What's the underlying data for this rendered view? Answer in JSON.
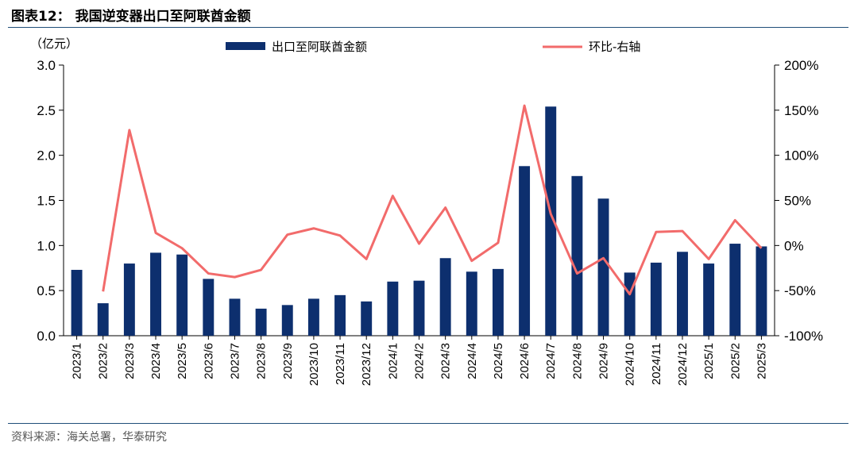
{
  "figure": {
    "title": "图表12：  我国逆变器出口至阿联酋金额",
    "source": "资料来源：海关总署，华泰研究"
  },
  "chart_data": {
    "type": "bar",
    "categories": [
      "2023/1",
      "2023/2",
      "2023/3",
      "2023/4",
      "2023/5",
      "2023/6",
      "2023/7",
      "2023/8",
      "2023/9",
      "2023/10",
      "2023/11",
      "2023/12",
      "2024/1",
      "2024/2",
      "2024/3",
      "2024/4",
      "2024/5",
      "2024/6",
      "2024/7",
      "2024/8",
      "2024/9",
      "2024/10",
      "2024/11",
      "2024/12",
      "2025/1",
      "2025/2",
      "2025/3"
    ],
    "series": [
      {
        "name": "出口至阿联酋金额",
        "type": "bar",
        "axis": "left",
        "color": "#0d2f6e",
        "values": [
          0.73,
          0.36,
          0.8,
          0.92,
          0.9,
          0.63,
          0.41,
          0.3,
          0.34,
          0.41,
          0.45,
          0.38,
          0.6,
          0.61,
          0.86,
          0.71,
          0.74,
          1.88,
          2.54,
          1.77,
          1.52,
          0.7,
          0.81,
          0.93,
          0.8,
          1.02,
          0.99
        ]
      },
      {
        "name": "环比-右轴",
        "type": "line",
        "axis": "right",
        "color": "#f26b6b",
        "values": [
          null,
          -51,
          128,
          14,
          -3,
          -31,
          -35,
          -27,
          12,
          19,
          11,
          -15,
          55,
          2,
          42,
          -17,
          3,
          155,
          35,
          -31,
          -14,
          -54,
          15,
          16,
          -15,
          28,
          -3
        ]
      }
    ],
    "y_left": {
      "unit_label": "（亿元）",
      "lim": [
        0,
        3.0
      ],
      "ticks": [
        "0.0",
        "0.5",
        "1.0",
        "1.5",
        "2.0",
        "2.5",
        "3.0"
      ]
    },
    "y_right": {
      "lim": [
        -100,
        200
      ],
      "ticks": [
        "-100%",
        "-50%",
        "0%",
        "50%",
        "100%",
        "150%",
        "200%"
      ]
    },
    "legend": {
      "placement": "top"
    },
    "grid": false
  }
}
